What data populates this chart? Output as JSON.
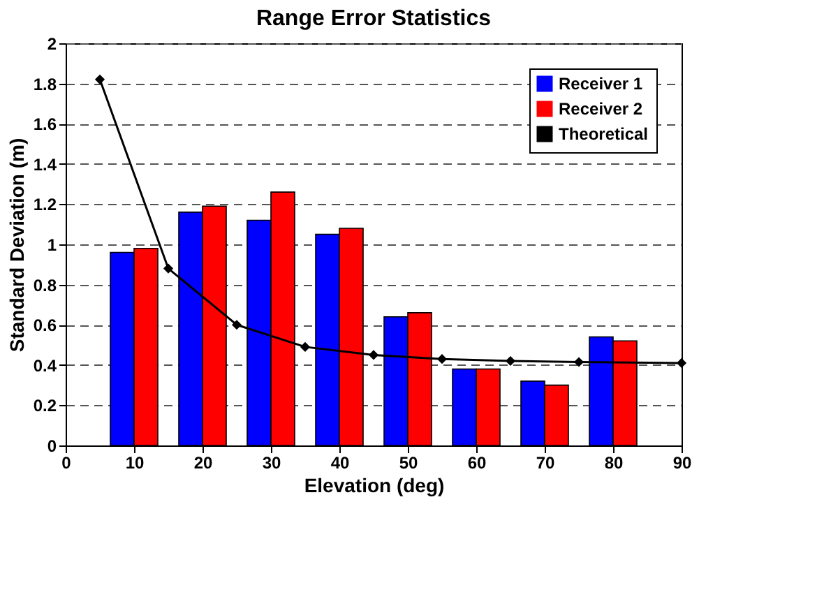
{
  "chart_data": {
    "type": "bar",
    "title": "Range Error Statistics",
    "xlabel": "Elevation (deg)",
    "ylabel": "Standard Deviation (m)",
    "x": [
      10,
      20,
      30,
      40,
      50,
      60,
      70,
      80
    ],
    "series": [
      {
        "name": "Receiver 1",
        "color": "#0000ff",
        "values": [
          0.96,
          1.16,
          1.12,
          1.05,
          0.64,
          0.38,
          0.32,
          0.54
        ]
      },
      {
        "name": "Receiver 2",
        "color": "#ff0000",
        "values": [
          0.98,
          1.19,
          1.26,
          1.08,
          0.66,
          0.38,
          0.3,
          0.52
        ]
      },
      {
        "name": "Theoretical",
        "type": "line",
        "color": "#000000",
        "marker": "diamond",
        "x": [
          5,
          15,
          25,
          35,
          45,
          55,
          65,
          75,
          90
        ],
        "values": [
          1.82,
          0.88,
          0.6,
          0.49,
          0.45,
          0.43,
          0.42,
          0.415,
          0.41
        ]
      }
    ],
    "xlim": [
      0,
      90
    ],
    "xticks": [
      0,
      10,
      20,
      30,
      40,
      50,
      60,
      70,
      80,
      90
    ],
    "ylim": [
      0,
      2
    ],
    "yticks": [
      0,
      0.2,
      0.4,
      0.6,
      0.8,
      1,
      1.2,
      1.4,
      1.6,
      1.8,
      2
    ],
    "grid": "y",
    "legend": "top right"
  }
}
